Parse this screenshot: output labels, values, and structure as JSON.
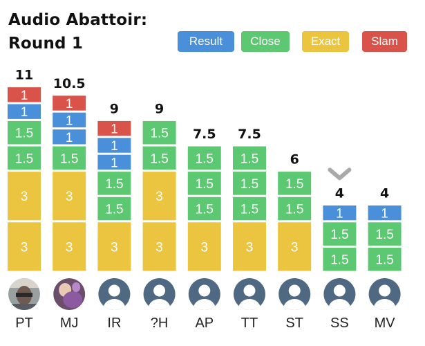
{
  "title_line1": "Audio Abattoir:",
  "title_line2": "Round 1",
  "colors": {
    "Result": "#4a8fd9",
    "Close": "#5cc871",
    "Exact": "#ebc53f",
    "Slam": "#d9534a",
    "avatar_bg": "#4e6981",
    "avatar_fg": "#ffffff",
    "chevron": "#a9a9a9"
  },
  "chart_data": {
    "type": "bar",
    "stacked": true,
    "legend": [
      "Result",
      "Close",
      "Exact",
      "Slam"
    ],
    "legend_position": "top-right",
    "categories": [
      "PT",
      "MJ",
      "IR",
      "?H",
      "AP",
      "TT",
      "ST",
      "SS",
      "MV"
    ],
    "totals": [
      "11",
      "10.5",
      "9",
      "9",
      "7.5",
      "7.5",
      "6",
      "4",
      "4"
    ],
    "stacks": [
      [
        {
          "cat": "Exact",
          "v": 3
        },
        {
          "cat": "Exact",
          "v": 3
        },
        {
          "cat": "Close",
          "v": 1.5
        },
        {
          "cat": "Close",
          "v": 1.5
        },
        {
          "cat": "Result",
          "v": 1
        },
        {
          "cat": "Slam",
          "v": 1
        }
      ],
      [
        {
          "cat": "Exact",
          "v": 3
        },
        {
          "cat": "Exact",
          "v": 3
        },
        {
          "cat": "Close",
          "v": 1.5
        },
        {
          "cat": "Result",
          "v": 1
        },
        {
          "cat": "Result",
          "v": 1
        },
        {
          "cat": "Slam",
          "v": 1
        }
      ],
      [
        {
          "cat": "Exact",
          "v": 3
        },
        {
          "cat": "Close",
          "v": 1.5
        },
        {
          "cat": "Close",
          "v": 1.5
        },
        {
          "cat": "Result",
          "v": 1
        },
        {
          "cat": "Result",
          "v": 1
        },
        {
          "cat": "Slam",
          "v": 1
        }
      ],
      [
        {
          "cat": "Exact",
          "v": 3
        },
        {
          "cat": "Exact",
          "v": 3
        },
        {
          "cat": "Close",
          "v": 1.5
        },
        {
          "cat": "Close",
          "v": 1.5
        }
      ],
      [
        {
          "cat": "Exact",
          "v": 3
        },
        {
          "cat": "Close",
          "v": 1.5
        },
        {
          "cat": "Close",
          "v": 1.5
        },
        {
          "cat": "Close",
          "v": 1.5
        }
      ],
      [
        {
          "cat": "Exact",
          "v": 3
        },
        {
          "cat": "Close",
          "v": 1.5
        },
        {
          "cat": "Close",
          "v": 1.5
        },
        {
          "cat": "Close",
          "v": 1.5
        }
      ],
      [
        {
          "cat": "Exact",
          "v": 3
        },
        {
          "cat": "Close",
          "v": 1.5
        },
        {
          "cat": "Close",
          "v": 1.5
        }
      ],
      [
        {
          "cat": "Close",
          "v": 1.5
        },
        {
          "cat": "Close",
          "v": 1.5
        },
        {
          "cat": "Result",
          "v": 1
        }
      ],
      [
        {
          "cat": "Close",
          "v": 1.5
        },
        {
          "cat": "Close",
          "v": 1.5
        },
        {
          "cat": "Result",
          "v": 1
        }
      ]
    ],
    "avatars": [
      "photo",
      "photo",
      "default",
      "default",
      "default",
      "default",
      "default",
      "default",
      "default"
    ],
    "marker": {
      "player": "SS",
      "icon": "chevron-down-icon"
    }
  }
}
